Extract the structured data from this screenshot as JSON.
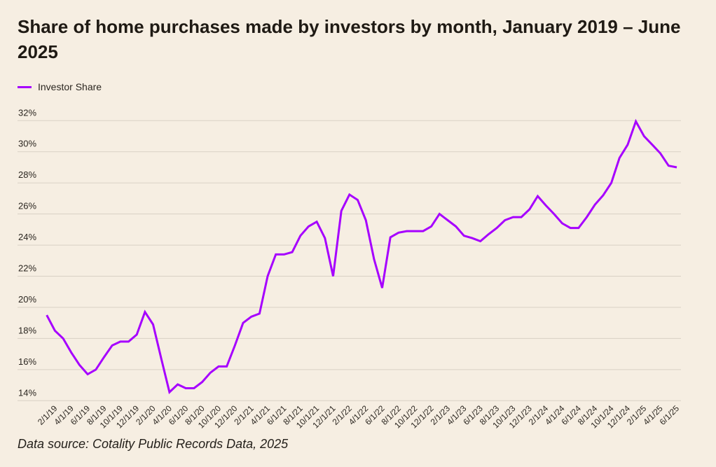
{
  "chart_data": {
    "type": "line",
    "title": "Share of home purchases made by investors by month, January 2019 – June 2025",
    "xlabel": "",
    "ylabel": "",
    "ylim": [
      14,
      32
    ],
    "y_ticks": [
      "14%",
      "16%",
      "18%",
      "20%",
      "22%",
      "24%",
      "26%",
      "28%",
      "30%",
      "32%"
    ],
    "y_tick_values": [
      14,
      16,
      18,
      20,
      22,
      24,
      26,
      28,
      30,
      32
    ],
    "grid": "horizontal",
    "legend_position": "top-left",
    "x": [
      "1/1/19",
      "2/1/19",
      "3/1/19",
      "4/1/19",
      "5/1/19",
      "6/1/19",
      "7/1/19",
      "8/1/19",
      "9/1/19",
      "10/1/19",
      "11/1/19",
      "12/1/19",
      "1/1/20",
      "2/1/20",
      "3/1/20",
      "4/1/20",
      "5/1/20",
      "6/1/20",
      "7/1/20",
      "8/1/20",
      "9/1/20",
      "10/1/20",
      "11/1/20",
      "12/1/20",
      "1/1/21",
      "2/1/21",
      "3/1/21",
      "4/1/21",
      "5/1/21",
      "6/1/21",
      "7/1/21",
      "8/1/21",
      "9/1/21",
      "10/1/21",
      "11/1/21",
      "12/1/21",
      "1/1/22",
      "2/1/22",
      "3/1/22",
      "4/1/22",
      "5/1/22",
      "6/1/22",
      "7/1/22",
      "8/1/22",
      "9/1/22",
      "10/1/22",
      "11/1/22",
      "12/1/22",
      "1/1/23",
      "2/1/23",
      "3/1/23",
      "4/1/23",
      "5/1/23",
      "6/1/23",
      "7/1/23",
      "8/1/23",
      "9/1/23",
      "10/1/23",
      "11/1/23",
      "12/1/23",
      "1/1/24",
      "2/1/24",
      "3/1/24",
      "4/1/24",
      "5/1/24",
      "6/1/24",
      "7/1/24",
      "8/1/24",
      "9/1/24",
      "10/1/24",
      "11/1/24",
      "12/1/24",
      "1/1/25",
      "2/1/25",
      "3/1/25",
      "4/1/25",
      "5/1/25",
      "6/1/25"
    ],
    "x_tick_labels": [
      "2/1/19",
      "4/1/19",
      "6/1/19",
      "8/1/19",
      "10/1/19",
      "12/1/19",
      "2/1/20",
      "4/1/20",
      "6/1/20",
      "8/1/20",
      "10/1/20",
      "12/1/20",
      "2/1/21",
      "4/1/21",
      "6/1/21",
      "8/1/21",
      "10/1/21",
      "12/1/21",
      "2/1/22",
      "4/1/22",
      "6/1/22",
      "8/1/22",
      "10/1/22",
      "12/1/22",
      "2/1/23",
      "4/1/23",
      "6/1/23",
      "8/1/23",
      "10/1/23",
      "12/1/23",
      "2/1/24",
      "4/1/24",
      "6/1/24",
      "8/1/24",
      "10/1/24",
      "12/1/24",
      "2/1/25",
      "4/1/25",
      "6/1/25"
    ],
    "series": [
      {
        "name": "Investor Share",
        "color": "#a600ff",
        "values": [
          19.5,
          18.5,
          18.0,
          17.1,
          16.3,
          15.7,
          16.0,
          16.8,
          17.55,
          17.8,
          17.8,
          18.25,
          19.7,
          18.9,
          16.7,
          14.55,
          15.05,
          14.8,
          14.8,
          15.2,
          15.8,
          16.2,
          16.2,
          17.55,
          19.0,
          19.4,
          19.6,
          22.0,
          23.4,
          23.4,
          23.55,
          24.6,
          25.2,
          25.5,
          24.45,
          22.0,
          26.2,
          27.25,
          26.9,
          25.6,
          23.1,
          21.25,
          24.5,
          24.8,
          24.9,
          24.9,
          24.9,
          25.2,
          26.0,
          25.6,
          25.2,
          24.6,
          24.45,
          24.25,
          24.7,
          25.1,
          25.6,
          25.8,
          25.8,
          26.3,
          27.15,
          26.55,
          26.0,
          25.4,
          25.1,
          25.1,
          25.8,
          26.6,
          27.2,
          28.0,
          29.6,
          30.45,
          31.95,
          31.0,
          30.45,
          29.9,
          29.1,
          29.0
        ]
      }
    ],
    "source": "Data source: Cotality Public Records Data, 2025"
  },
  "colors": {
    "background": "#f6eee2",
    "grid": "#d9d1c5",
    "line": "#a600ff"
  }
}
